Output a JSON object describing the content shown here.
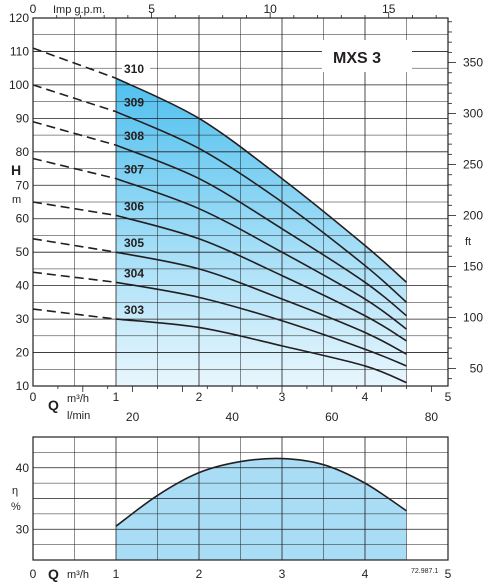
{
  "chart_data": [
    {
      "type": "line",
      "title": "MXS 3",
      "top_axis": {
        "label": "Imp g.p.m.",
        "range": [
          0,
          17.5
        ],
        "ticks": [
          "0",
          "5",
          "10",
          "15"
        ],
        "tick_values": [
          0,
          5,
          10,
          15
        ]
      },
      "x": {
        "label_letter": "Q",
        "unit": "m³/h",
        "range": [
          0,
          5
        ],
        "ticks": [
          "0",
          "1",
          "2",
          "3",
          "4",
          "5"
        ],
        "tick_values": [
          0,
          1,
          2,
          3,
          4,
          5
        ]
      },
      "x2": {
        "unit": "l/min",
        "range": [
          0,
          83.33
        ],
        "ticks": [
          "20",
          "40",
          "60",
          "80"
        ],
        "tick_values": [
          20,
          40,
          60,
          80
        ]
      },
      "y": {
        "label_letter": "H",
        "unit": "m",
        "range": [
          10,
          120
        ],
        "ticks": [
          "10",
          "20",
          "30",
          "40",
          "50",
          "60",
          "70",
          "80",
          "90",
          "100",
          "110",
          "120"
        ],
        "tick_values": [
          10,
          20,
          30,
          40,
          50,
          60,
          70,
          80,
          90,
          100,
          110,
          120
        ]
      },
      "y2": {
        "unit": "ft",
        "ticks": [
          "50",
          "100",
          "150",
          "200",
          "250",
          "300",
          "350"
        ],
        "tick_values": [
          50,
          100,
          150,
          200,
          250,
          300,
          350
        ]
      },
      "operating_range": [
        1,
        4.5
      ],
      "series": [
        {
          "name": "310",
          "x": [
            0,
            1,
            2,
            3,
            4,
            4.5
          ],
          "y": [
            111,
            102,
            90,
            72,
            52,
            41
          ]
        },
        {
          "name": "309",
          "x": [
            0,
            1,
            2,
            3,
            4,
            4.5
          ],
          "y": [
            100,
            92,
            81,
            65,
            46,
            35
          ]
        },
        {
          "name": "308",
          "x": [
            0,
            1,
            2,
            3,
            4,
            4.5
          ],
          "y": [
            89,
            82,
            72,
            57,
            41,
            31
          ]
        },
        {
          "name": "307",
          "x": [
            0,
            1,
            2,
            3,
            4,
            4.5
          ],
          "y": [
            78,
            72,
            63,
            50,
            36,
            27
          ]
        },
        {
          "name": "306",
          "x": [
            0,
            1,
            2,
            3,
            4,
            4.5
          ],
          "y": [
            65,
            61,
            54,
            43,
            31,
            23.5
          ]
        },
        {
          "name": "305",
          "x": [
            0,
            1,
            2,
            3,
            4,
            4.5
          ],
          "y": [
            54,
            50,
            45,
            36,
            26,
            19.5
          ]
        },
        {
          "name": "304",
          "x": [
            0,
            1,
            2,
            3,
            4,
            4.5
          ],
          "y": [
            44,
            41,
            36.5,
            29.5,
            21,
            16
          ]
        },
        {
          "name": "303",
          "x": [
            0,
            1,
            2,
            3,
            4,
            4.5
          ],
          "y": [
            33,
            30,
            27.5,
            22,
            16,
            11
          ]
        }
      ]
    },
    {
      "type": "area",
      "x": {
        "label_letter": "Q",
        "unit": "m³/h",
        "range": [
          0,
          5
        ],
        "ticks": [
          "0",
          "1",
          "2",
          "3",
          "4",
          "5"
        ],
        "tick_values": [
          0,
          1,
          2,
          3,
          4,
          5
        ]
      },
      "y": {
        "label_letter": "η",
        "unit": "%",
        "range": [
          25,
          45
        ],
        "ticks": [
          "30",
          "40"
        ],
        "tick_values": [
          30,
          40
        ]
      },
      "series": [
        {
          "name": "",
          "x": [
            1,
            1.5,
            2,
            2.5,
            3,
            3.5,
            4,
            4.5
          ],
          "y": [
            30.5,
            35.5,
            39.2,
            41,
            41.5,
            40.5,
            37.5,
            33
          ]
        }
      ],
      "code": "72.987.1"
    }
  ],
  "colors": {
    "fill_dark": "#4fc0ef",
    "fill_light": "#e8f6fd",
    "eff_fill": "#a9dcf5",
    "line": "#231f20",
    "grid": "#231f20"
  }
}
